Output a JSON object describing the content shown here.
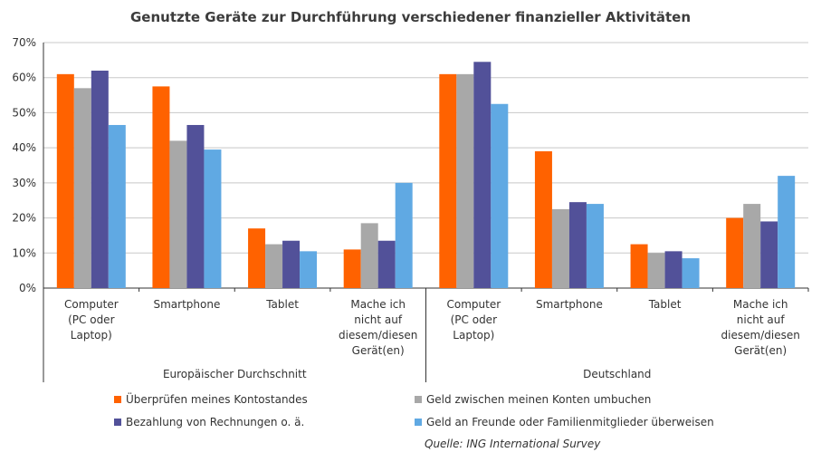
{
  "chart_data": {
    "type": "bar",
    "title": "Genutzte Geräte zur Durchführung verschiedener finanzieller Aktivitäten",
    "ylim": [
      0,
      70
    ],
    "y_ticks": [
      "0%",
      "10%",
      "20%",
      "30%",
      "40%",
      "50%",
      "60%",
      "70%"
    ],
    "grid": true,
    "legend_position": "bottom",
    "groups": [
      {
        "label": "Europäischer Durchschnitt",
        "categories": [
          [
            "Computer",
            "(PC oder",
            "Laptop)"
          ],
          [
            "Smartphone"
          ],
          [
            "Tablet"
          ],
          [
            "Mache ich",
            "nicht auf",
            "diesem/diesen",
            "Gerät(en)"
          ]
        ]
      },
      {
        "label": "Deutschland",
        "categories": [
          [
            "Computer",
            "(PC oder",
            "Laptop)"
          ],
          [
            "Smartphone"
          ],
          [
            "Tablet"
          ],
          [
            "Mache ich",
            "nicht auf",
            "diesem/diesen",
            "Gerät(en)"
          ]
        ]
      }
    ],
    "series": [
      {
        "name": "Überprüfen meines Kontostandes",
        "color": "#ff6200",
        "values": [
          61,
          57.5,
          17,
          11,
          61,
          39,
          12.5,
          20
        ]
      },
      {
        "name": "Geld zwischen meinen Konten umbuchen",
        "color": "#a8a8a8",
        "values": [
          57,
          42,
          12.5,
          18.5,
          61,
          22.5,
          10,
          24
        ]
      },
      {
        "name": "Bezahlung von Rechnungen o. ä.",
        "color": "#525199",
        "values": [
          62,
          46.5,
          13.5,
          13.5,
          64.5,
          24.5,
          10.5,
          19
        ]
      },
      {
        "name": "Geld an Freunde oder Familienmitglieder überweisen",
        "color": "#60a9e3",
        "values": [
          46.5,
          39.5,
          10.5,
          30,
          52.5,
          24,
          8.5,
          32
        ]
      }
    ],
    "source": "Quelle: ING International Survey"
  }
}
